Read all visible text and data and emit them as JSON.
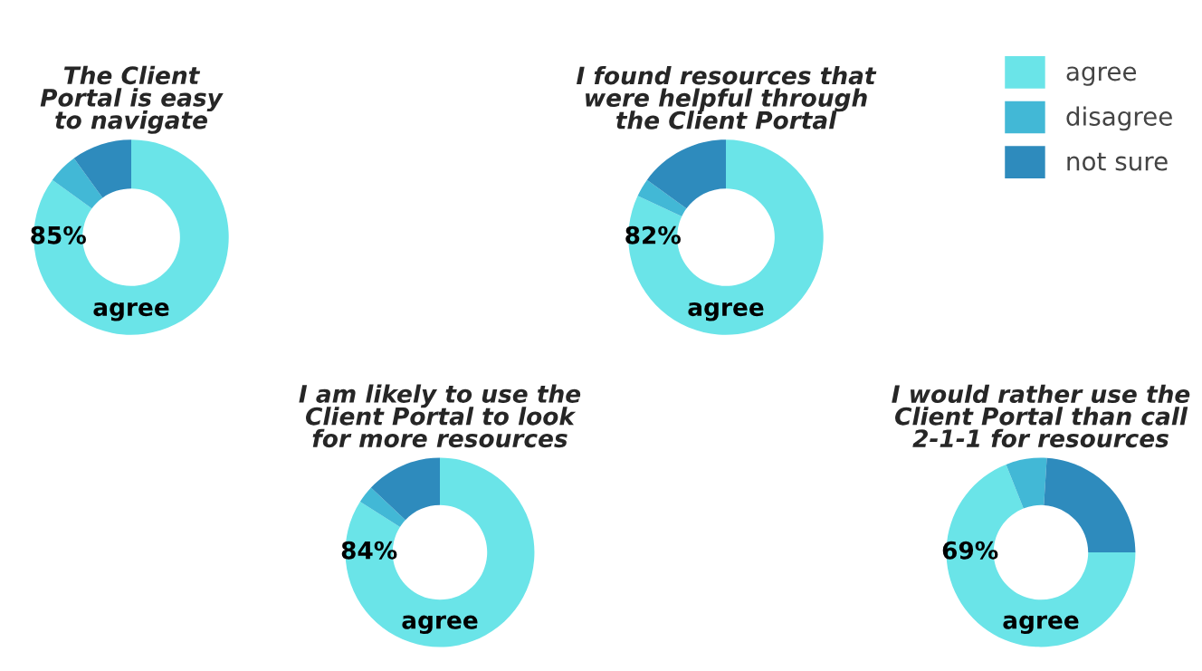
{
  "chart_data": [
    {
      "type": "donut",
      "title": "The Client\nPortal is easy\nto navigate",
      "categories": [
        "agree",
        "disagree",
        "not sure"
      ],
      "values": [
        85,
        5,
        10
      ],
      "colors": [
        "#6ae4e8",
        "#42b8d6",
        "#2e8bbd"
      ],
      "value_labels": [
        "85%",
        null,
        null
      ],
      "annotations": [
        "agree"
      ],
      "legend": "top right"
    },
    {
      "type": "donut",
      "title": "I found resources that\nwere helpful through\nthe Client Portal",
      "categories": [
        null,
        null,
        null
      ],
      "values": [
        82,
        3,
        15
      ],
      "colors": [
        "#6ae4e8",
        "#42b8d6",
        "#2e8bbd"
      ],
      "value_labels": [
        "82%",
        null,
        null
      ],
      "annotations": [
        "agree"
      ]
    },
    {
      "type": "donut",
      "title": "I am likely to use the\nClient Portal to look\nfor more resources",
      "categories": [
        null,
        null,
        null
      ],
      "values": [
        84,
        3,
        13
      ],
      "colors": [
        "#6ae4e8",
        "#42b8d6",
        "#2e8bbd"
      ],
      "value_labels": [
        "84%",
        null,
        null
      ],
      "annotations": [
        "agree"
      ]
    },
    {
      "type": "donut",
      "title": "I would rather use the\nClient Portal than call\n2-1-1 for resources",
      "categories": [
        null,
        null,
        null
      ],
      "values": [
        69,
        7,
        24
      ],
      "colors": [
        "#6ae4e8",
        "#42b8d6",
        "#2e8bbd"
      ],
      "value_labels": [
        "69%",
        null,
        null
      ],
      "annotations": [
        "agree"
      ]
    }
  ]
}
